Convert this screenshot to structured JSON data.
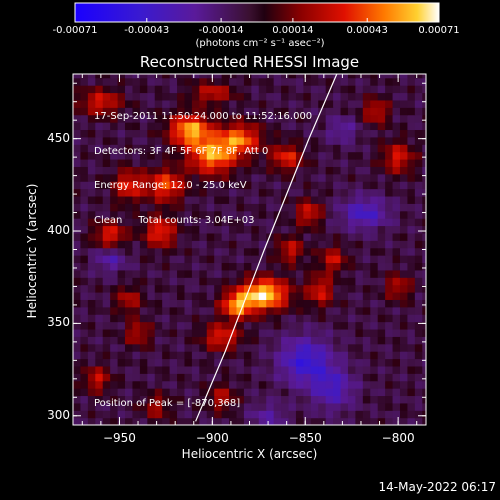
{
  "chart_data": {
    "type": "heatmap",
    "title": "Reconstructed RHESSI Image",
    "xlabel": "Heliocentric X (arcsec)",
    "ylabel": "Heliocentric Y (arcsec)",
    "xlim": [
      -975,
      -785
    ],
    "ylim": [
      295,
      485
    ],
    "x_ticks": [
      -950,
      -900,
      -850,
      -800
    ],
    "y_ticks": [
      300,
      350,
      400,
      450
    ],
    "colorbar": {
      "min": -0.00071,
      "max": 0.00071,
      "tick_values": [
        -0.00071,
        -0.00043,
        -0.00014,
        0.00014,
        0.00043,
        0.00071
      ],
      "tick_labels": [
        "-0.00071",
        "-0.00043",
        "-0.00014",
        "0.00014",
        "0.00043",
        "0.00071"
      ],
      "units": "(photons cm⁻² s⁻¹ asec⁻²)"
    },
    "info_lines": [
      "17-Sep-2011 11:50:24.000 to 11:52:16.000",
      "Detectors: 3F 4F 5F 6F 7F 8F, Att 0",
      "Energy Range: 12.0 - 25.0 keV",
      "Clean     Total counts: 3.04E+03"
    ],
    "peak_label": "Position of Peak = [-870,368]",
    "peak": [
      -870,
      368
    ],
    "limb_curve": [
      [
        -909,
        297
      ],
      [
        -893,
        335
      ],
      [
        -872,
        390
      ],
      [
        -848,
        450
      ],
      [
        -833,
        485
      ]
    ],
    "sources": [
      {
        "x": -872,
        "y": 366,
        "amp": 1.0,
        "sx": 9,
        "sy": 6
      },
      {
        "x": -887,
        "y": 360,
        "amp": 0.75,
        "sx": 6,
        "sy": 5
      },
      {
        "x": -895,
        "y": 343,
        "amp": 0.55,
        "sx": 7,
        "sy": 5
      },
      {
        "x": -912,
        "y": 455,
        "amp": 0.85,
        "sx": 8,
        "sy": 6
      },
      {
        "x": -900,
        "y": 441,
        "amp": 0.8,
        "sx": 9,
        "sy": 7
      },
      {
        "x": -885,
        "y": 450,
        "amp": 0.7,
        "sx": 8,
        "sy": 6
      },
      {
        "x": -925,
        "y": 425,
        "amp": 0.65,
        "sx": 7,
        "sy": 6
      },
      {
        "x": -945,
        "y": 425,
        "amp": 0.55,
        "sx": 6,
        "sy": 6
      },
      {
        "x": -928,
        "y": 400,
        "amp": 0.6,
        "sx": 6,
        "sy": 6
      },
      {
        "x": -955,
        "y": 398,
        "amp": 0.55,
        "sx": 6,
        "sy": 5
      },
      {
        "x": -960,
        "y": 470,
        "amp": 0.5,
        "sx": 8,
        "sy": 5
      },
      {
        "x": -900,
        "y": 475,
        "amp": 0.45,
        "sx": 8,
        "sy": 4
      },
      {
        "x": -860,
        "y": 440,
        "amp": 0.55,
        "sx": 6,
        "sy": 5
      },
      {
        "x": -848,
        "y": 410,
        "amp": 0.5,
        "sx": 5,
        "sy": 5
      },
      {
        "x": -858,
        "y": 390,
        "amp": 0.45,
        "sx": 5,
        "sy": 5
      },
      {
        "x": -842,
        "y": 368,
        "amp": 0.5,
        "sx": 5,
        "sy": 6
      },
      {
        "x": -835,
        "y": 385,
        "amp": 0.45,
        "sx": 5,
        "sy": 5
      },
      {
        "x": -800,
        "y": 440,
        "amp": 0.5,
        "sx": 6,
        "sy": 6
      },
      {
        "x": -812,
        "y": 465,
        "amp": 0.45,
        "sx": 5,
        "sy": 5
      },
      {
        "x": -800,
        "y": 370,
        "amp": 0.4,
        "sx": 5,
        "sy": 5
      },
      {
        "x": -962,
        "y": 320,
        "amp": 0.45,
        "sx": 5,
        "sy": 5
      },
      {
        "x": -940,
        "y": 345,
        "amp": 0.4,
        "sx": 5,
        "sy": 5
      },
      {
        "x": -945,
        "y": 363,
        "amp": 0.4,
        "sx": 5,
        "sy": 5
      },
      {
        "x": -930,
        "y": 305,
        "amp": 0.35,
        "sx": 5,
        "sy": 5
      },
      {
        "x": -895,
        "y": 310,
        "amp": 0.4,
        "sx": 5,
        "sy": 5
      },
      {
        "x": -850,
        "y": 330,
        "amp": -0.6,
        "sx": 10,
        "sy": 9
      },
      {
        "x": -835,
        "y": 315,
        "amp": -0.45,
        "sx": 8,
        "sy": 8
      },
      {
        "x": -818,
        "y": 410,
        "amp": -0.5,
        "sx": 9,
        "sy": 6
      },
      {
        "x": -830,
        "y": 455,
        "amp": -0.3,
        "sx": 6,
        "sy": 5
      },
      {
        "x": -955,
        "y": 385,
        "amp": -0.35,
        "sx": 6,
        "sy": 5
      },
      {
        "x": -870,
        "y": 300,
        "amp": -0.3,
        "sx": 7,
        "sy": 5
      }
    ]
  },
  "footer_timestamp": "14-May-2022 06:17"
}
